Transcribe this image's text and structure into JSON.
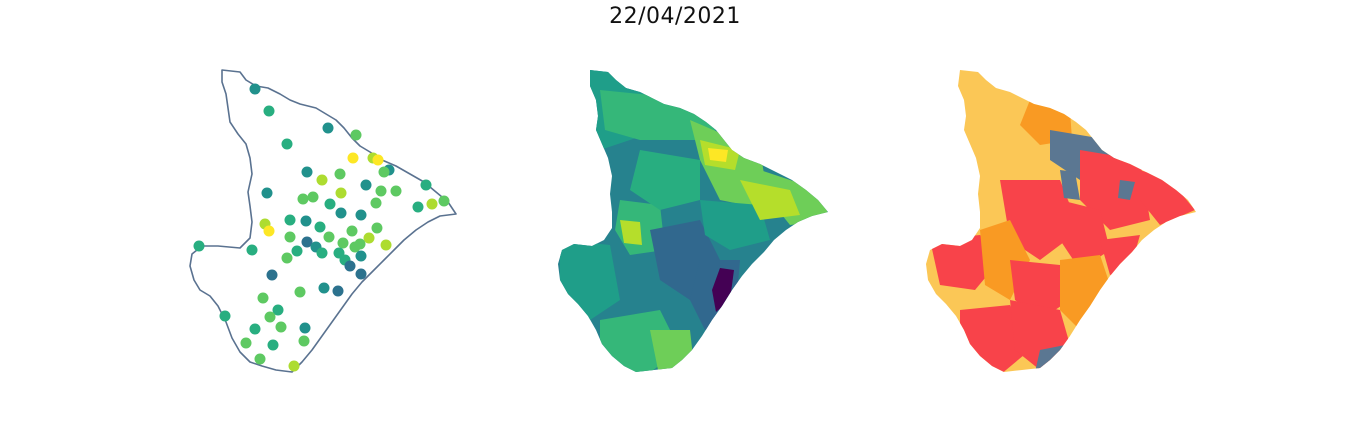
{
  "figure": {
    "title": "22/04/2021"
  },
  "colors": {
    "outline": "#5a7290",
    "points_ramp": [
      "#3b528b",
      "#2c728e",
      "#21918c",
      "#28ae80",
      "#5ec962",
      "#addc30",
      "#fde725"
    ],
    "interp_ramp": [
      "#440154",
      "#31688e",
      "#26828e",
      "#1f9e89",
      "#35b779",
      "#6ece58",
      "#b5de2b",
      "#fde725"
    ],
    "classes": {
      "class_1": "#5b7792",
      "class_2": "#fbc756",
      "class_3": "#f99a23",
      "class_4": "#f8434a"
    }
  },
  "panels": [
    {
      "name": "station-points",
      "type": "scatter-map"
    },
    {
      "name": "interpolated-surface",
      "type": "choropleth-continuous"
    },
    {
      "name": "classified-municipalities",
      "type": "choropleth-categorical"
    }
  ]
}
